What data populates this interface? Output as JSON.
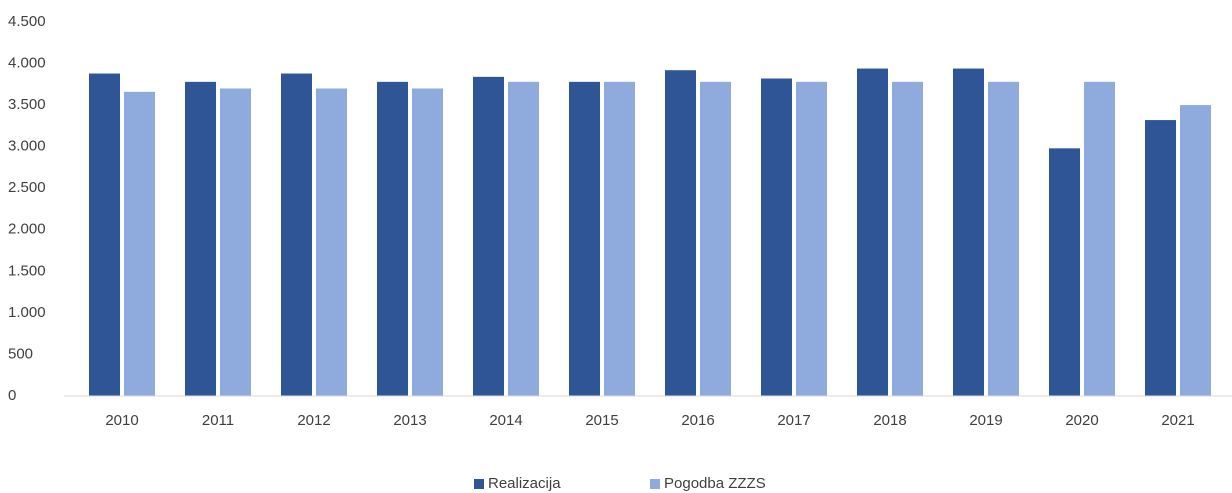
{
  "chart_data": {
    "type": "bar",
    "categories": [
      "2010",
      "2011",
      "2012",
      "2013",
      "2014",
      "2015",
      "2016",
      "2017",
      "2018",
      "2019",
      "2020",
      "2021"
    ],
    "series": [
      {
        "name": "Realizacija",
        "color": "#2f5597",
        "values": [
          3880,
          3780,
          3880,
          3780,
          3840,
          3780,
          3920,
          3820,
          3940,
          3940,
          2980,
          3320
        ]
      },
      {
        "name": "Pogodba ZZZS",
        "color": "#8faadc",
        "values": [
          3660,
          3700,
          3700,
          3700,
          3780,
          3780,
          3780,
          3780,
          3780,
          3780,
          3780,
          3500
        ]
      }
    ],
    "ylim": [
      0,
      4500
    ],
    "yticks": [
      0,
      500,
      {
        "value": 1000,
        "label": "1.000"
      },
      {
        "value": 1500,
        "label": "1.500"
      },
      {
        "value": 2000,
        "label": "2.000"
      },
      {
        "value": 2500,
        "label": "2.500"
      },
      {
        "value": 3000,
        "label": "3.000"
      },
      {
        "value": 3500,
        "label": "3.500"
      },
      {
        "value": 4000,
        "label": "4.000"
      },
      {
        "value": 4500,
        "label": "4.500"
      }
    ],
    "legend": "bottom"
  }
}
